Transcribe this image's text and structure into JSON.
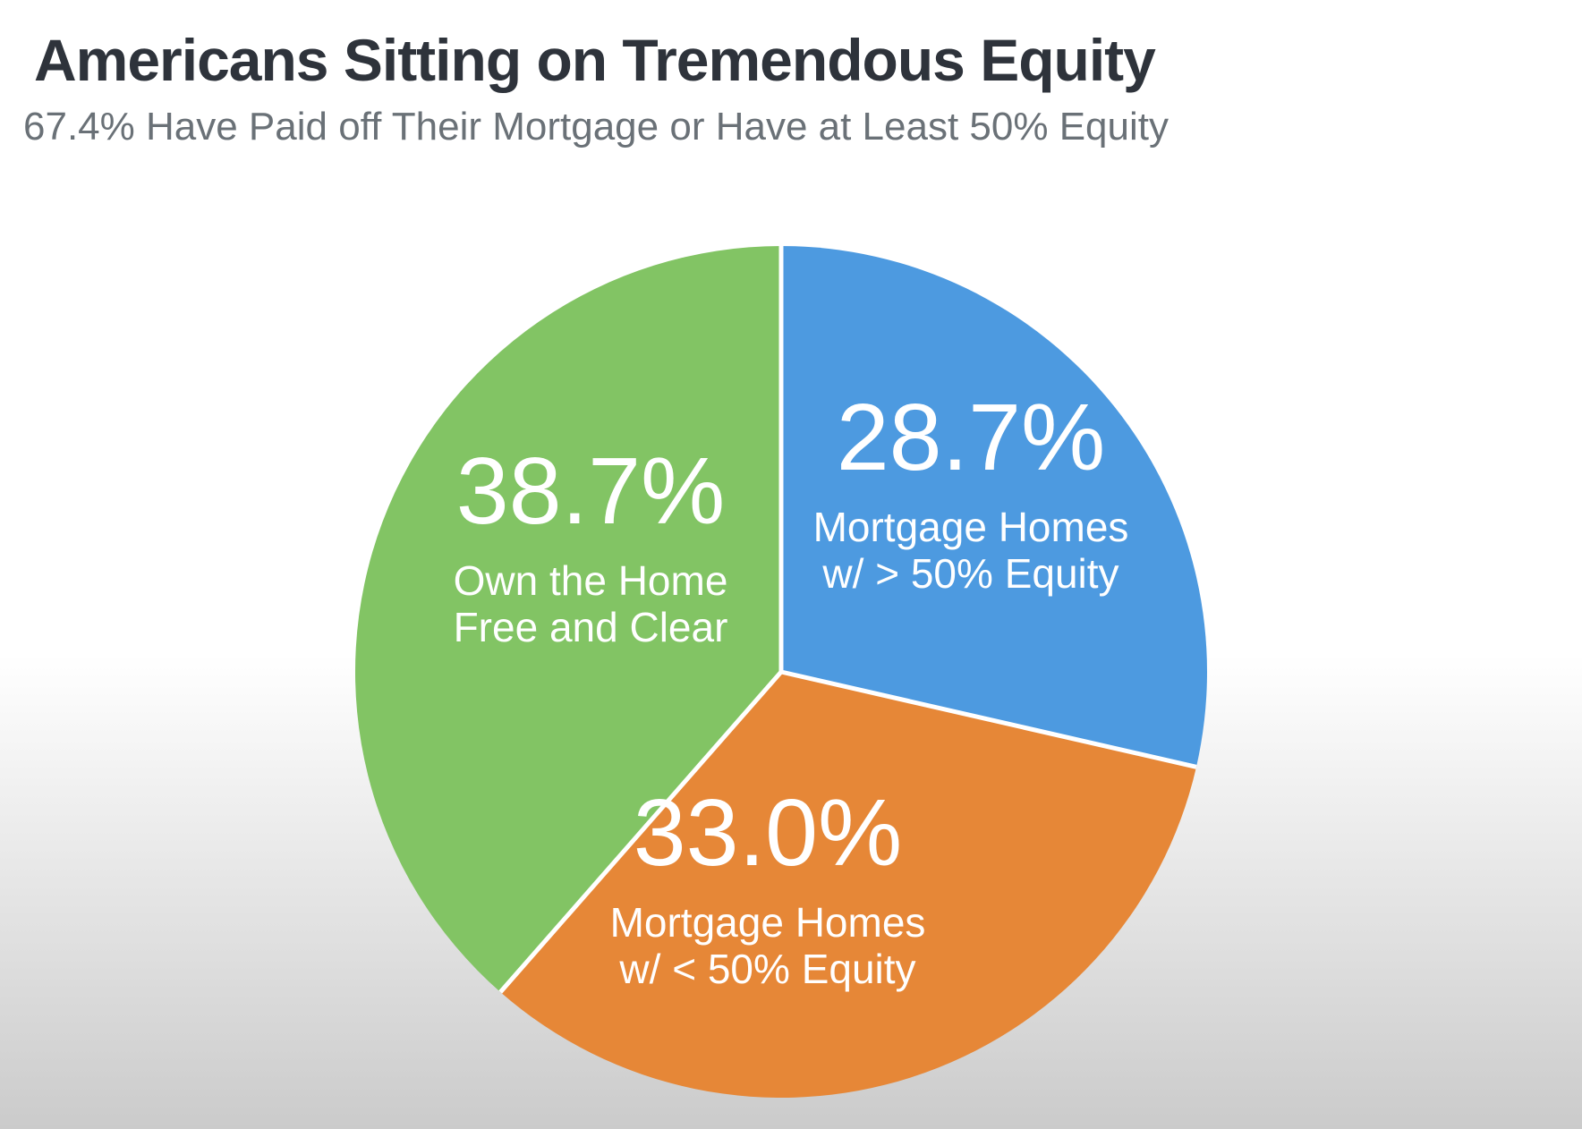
{
  "page": {
    "title": "Americans Sitting on Tremendous Equity",
    "subtitle": "67.4% Have Paid off Their Mortgage or Have at Least 50% Equity"
  },
  "chart_data": {
    "type": "pie",
    "title": "Americans Sitting on Tremendous Equity",
    "subtitle": "67.4% Have Paid off Their Mortgage or Have at Least 50% Equity",
    "start_angle_deg": 0,
    "direction": "clockwise",
    "labels_inside": true,
    "legend": "none",
    "slices": [
      {
        "label": "Mortgage Homes w/ > 50% Equity",
        "label_lines": [
          "Mortgage Homes",
          "w/ > 50% Equity"
        ],
        "value_pct": 28.7,
        "value_label": "28.7%",
        "color": "#4d9ae0"
      },
      {
        "label": "Mortgage Homes w/ < 50% Equity",
        "label_lines": [
          "Mortgage Homes",
          "w/ < 50% Equity"
        ],
        "value_pct": 33.0,
        "value_label": "33.0%",
        "color": "#e68737"
      },
      {
        "label": "Own the Home Free and Clear",
        "label_lines": [
          "Own the Home",
          "Free and Clear"
        ],
        "value_pct": 38.7,
        "value_label": "38.7%",
        "color": "#82c464"
      }
    ],
    "colors": {
      "slice_text": "#ffffff",
      "divider": "#ffffff",
      "title": "#2e333b",
      "subtitle": "#6a7177",
      "background_bottom": "#cbcbcb"
    }
  }
}
